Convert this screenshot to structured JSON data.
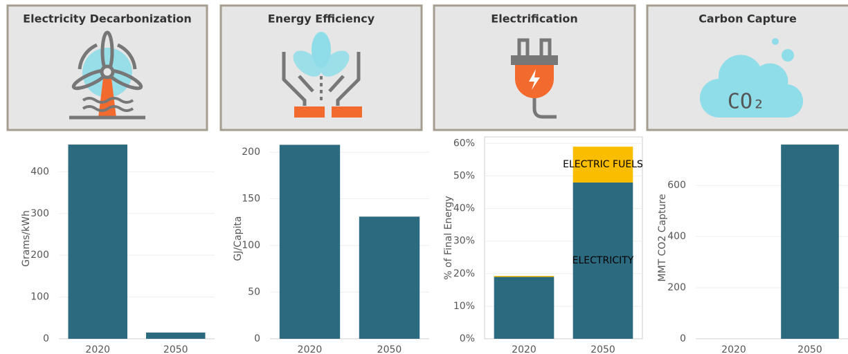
{
  "panels": [
    {
      "title": "Electricity Decarbonization"
    },
    {
      "title": "Energy Efficiency"
    },
    {
      "title": "Electrification"
    },
    {
      "title": "Carbon Capture"
    }
  ],
  "chart_data": [
    {
      "type": "bar",
      "y_label": "Grams/kWh",
      "categories": [
        "2020",
        "2050"
      ],
      "values": [
        465,
        15
      ],
      "color": "#2c6a80",
      "ylim": [
        0,
        480
      ],
      "yticks": [
        0,
        100,
        200,
        300,
        400
      ],
      "grid": true
    },
    {
      "type": "bar",
      "y_label": "GJ/Capita",
      "categories": [
        "2020",
        "2050"
      ],
      "values": [
        208,
        131
      ],
      "color": "#2c6a80",
      "ylim": [
        0,
        215
      ],
      "yticks": [
        0,
        50,
        100,
        150,
        200
      ],
      "grid": true
    },
    {
      "type": "stacked_bar",
      "y_label": "% of Final Energy",
      "categories": [
        "2020",
        "2050"
      ],
      "series": [
        {
          "name": "ELECTRICITY",
          "color": "#2c6a80",
          "values": [
            19,
            48
          ]
        },
        {
          "name": "ELECTRIC FUELS",
          "color": "#fbbd00",
          "values": [
            0.3,
            11
          ]
        }
      ],
      "ylim": [
        0,
        62
      ],
      "yticks": [
        {
          "value": 0,
          "label": "0%"
        },
        {
          "value": 10,
          "label": "10%"
        },
        {
          "value": 20,
          "label": "20%"
        },
        {
          "value": 30,
          "label": "30%"
        },
        {
          "value": 40,
          "label": "40%"
        },
        {
          "value": 50,
          "label": "50%"
        },
        {
          "value": 60,
          "label": "60%"
        }
      ],
      "grid": true
    },
    {
      "type": "bar",
      "y_label": "MMT CO2 Capture",
      "categories": [
        "2020",
        "2050"
      ],
      "values": [
        0,
        760
      ],
      "color": "#2c6a80",
      "ylim": [
        0,
        790
      ],
      "yticks": [
        0,
        200,
        400,
        600
      ],
      "grid": true
    }
  ]
}
